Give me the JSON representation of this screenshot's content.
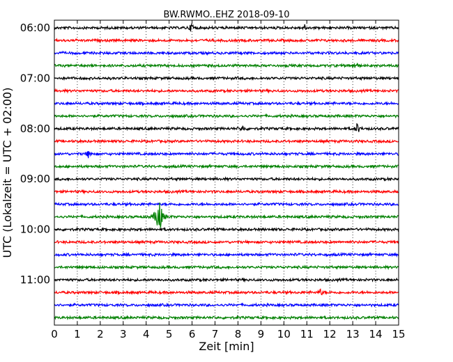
{
  "chart_data": {
    "type": "line",
    "title": "BW.RWMO..EHZ 2018-09-10",
    "xlabel": "Zeit  [min]",
    "ylabel": "UTC (Lokalzeit = UTC + 02:00)",
    "xlim": [
      0,
      15
    ],
    "x_ticks": [
      0,
      1,
      2,
      3,
      4,
      5,
      6,
      7,
      8,
      9,
      10,
      11,
      12,
      13,
      14,
      15
    ],
    "y_tick_labels": [
      "06:00",
      "07:00",
      "08:00",
      "09:00",
      "10:00",
      "11:00"
    ],
    "grid": "vertical-dotted",
    "trace_colors": [
      "#000000",
      "#ff0000",
      "#0000ff",
      "#008000"
    ],
    "trace_start_times": [
      "06:00",
      "06:15",
      "06:30",
      "06:45",
      "07:00",
      "07:15",
      "07:30",
      "07:45",
      "08:00",
      "08:15",
      "08:30",
      "08:45",
      "09:00",
      "09:15",
      "09:30",
      "09:45",
      "10:00",
      "10:15",
      "10:30",
      "10:45",
      "11:00",
      "11:15",
      "11:30",
      "11:45"
    ],
    "events": [
      {
        "trace": "06:00",
        "minute": 6.0,
        "amplitude": 0.5
      },
      {
        "trace": "06:00",
        "minute": 10.9,
        "amplitude": 0.25
      },
      {
        "trace": "06:45",
        "minute": 13.1,
        "amplitude": 0.4
      },
      {
        "trace": "08:00",
        "minute": 8.2,
        "amplitude": 0.3
      },
      {
        "trace": "08:00",
        "minute": 13.2,
        "amplitude": 0.5
      },
      {
        "trace": "08:30",
        "minute": 1.5,
        "amplitude": 0.4
      },
      {
        "trace": "09:45",
        "minute": 4.55,
        "amplitude": 2.0
      },
      {
        "trace": "11:15",
        "minute": 11.6,
        "amplitude": 0.3
      }
    ]
  }
}
